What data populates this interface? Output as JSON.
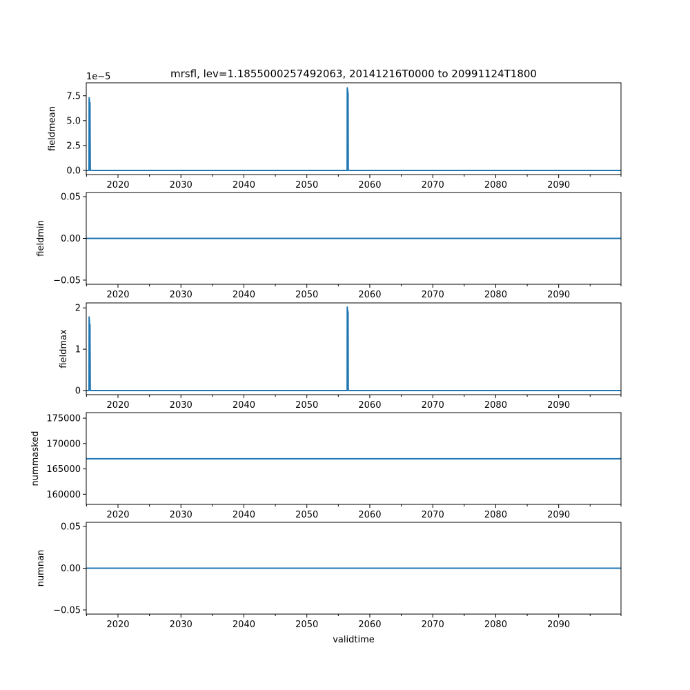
{
  "figure": {
    "title": "mrsfl, lev=1.1855000257492063, 20141216T0000 to 20991124T1800",
    "xlabel": "validtime"
  },
  "colors": {
    "line": "#1f77b4",
    "axes": "#000000",
    "background": "#ffffff"
  },
  "chart_data": [
    {
      "type": "line",
      "ylabel": "fieldmean",
      "offset_text": "1e−5",
      "xlim": [
        2014.96,
        2099.9
      ],
      "ylim": [
        -0.42,
        8.8
      ],
      "yticks": [
        0.0,
        2.5,
        5.0,
        7.5
      ],
      "ytick_labels": [
        "0.0",
        "2.5",
        "5.0",
        "7.5"
      ],
      "xticks": [
        2020,
        2030,
        2040,
        2050,
        2060,
        2070,
        2080,
        2090
      ],
      "xtick_labels": [
        "2020",
        "2030",
        "2040",
        "2050",
        "2060",
        "2070",
        "2080",
        "2090"
      ],
      "x_minor_ticks": [
        2015,
        2025,
        2035,
        2045,
        2055,
        2065,
        2075,
        2085,
        2095
      ],
      "grid": false,
      "series": [
        {
          "x": [
            2014.96,
            2015.4,
            2015.42,
            2015.44,
            2015.46,
            2015.5,
            2015.55,
            2015.6,
            2015.62,
            2015.65,
            2056.4,
            2056.42,
            2056.45,
            2056.48,
            2056.52,
            2056.55,
            2056.58,
            2056.62,
            2099.9
          ],
          "y": [
            0,
            0,
            7.3,
            0.5,
            7.1,
            0.3,
            6.8,
            0.2,
            0.05,
            0,
            0,
            8.3,
            0.6,
            8.1,
            0.4,
            7.8,
            0.1,
            0,
            0
          ]
        }
      ]
    },
    {
      "type": "line",
      "ylabel": "fieldmin",
      "xlim": [
        2014.96,
        2099.9
      ],
      "ylim": [
        -0.055,
        0.055
      ],
      "yticks": [
        -0.05,
        0.0,
        0.05
      ],
      "ytick_labels": [
        "−0.05",
        "0.00",
        "0.05"
      ],
      "xticks": [
        2020,
        2030,
        2040,
        2050,
        2060,
        2070,
        2080,
        2090
      ],
      "xtick_labels": [
        "2020",
        "2030",
        "2040",
        "2050",
        "2060",
        "2070",
        "2080",
        "2090"
      ],
      "x_minor_ticks": [
        2015,
        2025,
        2035,
        2045,
        2055,
        2065,
        2075,
        2085,
        2095
      ],
      "grid": false,
      "series": [
        {
          "x": [
            2014.96,
            2099.9
          ],
          "y": [
            0,
            0
          ]
        }
      ]
    },
    {
      "type": "line",
      "ylabel": "fieldmax",
      "xlim": [
        2014.96,
        2099.9
      ],
      "ylim": [
        -0.1,
        2.12
      ],
      "yticks": [
        0,
        1,
        2
      ],
      "ytick_labels": [
        "0",
        "1",
        "2"
      ],
      "xticks": [
        2020,
        2030,
        2040,
        2050,
        2060,
        2070,
        2080,
        2090
      ],
      "xtick_labels": [
        "2020",
        "2030",
        "2040",
        "2050",
        "2060",
        "2070",
        "2080",
        "2090"
      ],
      "x_minor_ticks": [
        2015,
        2025,
        2035,
        2045,
        2055,
        2065,
        2075,
        2085,
        2095
      ],
      "grid": false,
      "series": [
        {
          "x": [
            2014.96,
            2015.4,
            2015.42,
            2015.44,
            2015.46,
            2015.5,
            2015.55,
            2015.6,
            2015.62,
            2015.65,
            2056.4,
            2056.42,
            2056.45,
            2056.48,
            2056.52,
            2056.55,
            2056.58,
            2056.62,
            2099.9
          ],
          "y": [
            0,
            0,
            1.78,
            0.1,
            1.7,
            0.05,
            1.6,
            0.02,
            0.01,
            0,
            0,
            2.02,
            0.15,
            1.95,
            0.1,
            1.9,
            0.02,
            0,
            0
          ]
        }
      ]
    },
    {
      "type": "line",
      "ylabel": "nummasked",
      "xlim": [
        2014.96,
        2099.9
      ],
      "ylim": [
        158000,
        176100
      ],
      "yticks": [
        160000,
        165000,
        170000,
        175000
      ],
      "ytick_labels": [
        "160000",
        "165000",
        "170000",
        "175000"
      ],
      "xticks": [
        2020,
        2030,
        2040,
        2050,
        2060,
        2070,
        2080,
        2090
      ],
      "xtick_labels": [
        "2020",
        "2030",
        "2040",
        "2050",
        "2060",
        "2070",
        "2080",
        "2090"
      ],
      "x_minor_ticks": [
        2015,
        2025,
        2035,
        2045,
        2055,
        2065,
        2075,
        2085,
        2095
      ],
      "grid": false,
      "series": [
        {
          "x": [
            2014.96,
            2099.9
          ],
          "y": [
            167000,
            167000
          ]
        }
      ]
    },
    {
      "type": "line",
      "ylabel": "numnan",
      "xlim": [
        2014.96,
        2099.9
      ],
      "ylim": [
        -0.055,
        0.055
      ],
      "yticks": [
        -0.05,
        0.0,
        0.05
      ],
      "ytick_labels": [
        "−0.05",
        "0.00",
        "0.05"
      ],
      "xticks": [
        2020,
        2030,
        2040,
        2050,
        2060,
        2070,
        2080,
        2090
      ],
      "xtick_labels": [
        "2020",
        "2030",
        "2040",
        "2050",
        "2060",
        "2070",
        "2080",
        "2090"
      ],
      "x_minor_ticks": [
        2015,
        2025,
        2035,
        2045,
        2055,
        2065,
        2075,
        2085,
        2095
      ],
      "grid": false,
      "series": [
        {
          "x": [
            2014.96,
            2099.9
          ],
          "y": [
            0,
            0
          ]
        }
      ]
    }
  ]
}
